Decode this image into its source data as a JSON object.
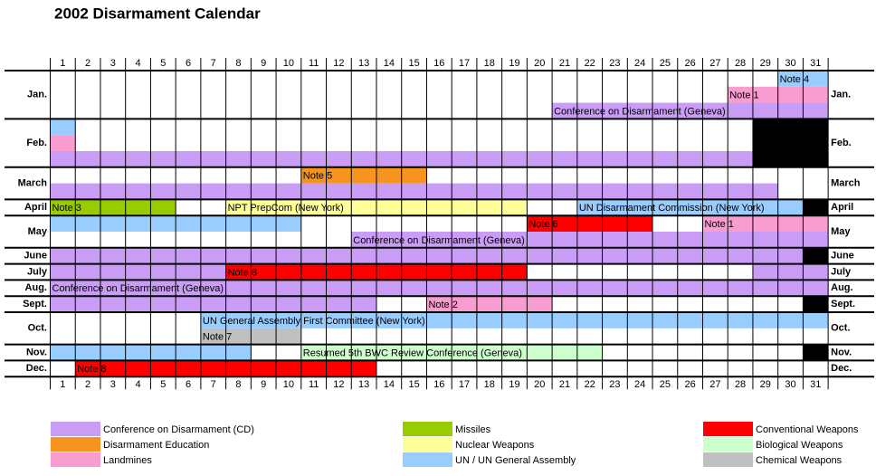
{
  "title": "2002 Disarmament Calendar",
  "days": [
    1,
    2,
    3,
    4,
    5,
    6,
    7,
    8,
    9,
    10,
    11,
    12,
    13,
    14,
    15,
    16,
    17,
    18,
    19,
    20,
    21,
    22,
    23,
    24,
    25,
    26,
    27,
    28,
    29,
    30,
    31
  ],
  "months": [
    {
      "label": "Jan.",
      "lanes": [
        [
          {
            "label": "Note 4",
            "start": 30,
            "end": 31,
            "color": "#99ccff"
          }
        ],
        [
          {
            "label": "Note 1",
            "start": 28,
            "end": 31,
            "color": "#f99ccf"
          }
        ],
        [
          {
            "label": "Conference on Disarmament (Geneva)",
            "start": 21,
            "end": 31,
            "color": "#c99cf5"
          }
        ]
      ]
    },
    {
      "label": "Feb.",
      "lanes": [
        [
          {
            "start": 1,
            "end": 1,
            "color": "#99ccff"
          }
        ],
        [
          {
            "start": 1,
            "end": 1,
            "color": "#f99ccf"
          }
        ],
        [
          {
            "start": 1,
            "end": 28,
            "color": "#c99cf5"
          }
        ]
      ]
    },
    {
      "label": "March",
      "lanes": [
        [
          {
            "label": "Note 5",
            "start": 11,
            "end": 15,
            "color": "#f7941d"
          }
        ],
        [
          {
            "start": 1,
            "end": 29,
            "color": "#c99cf5"
          }
        ]
      ]
    },
    {
      "label": "April",
      "lanes": [
        [
          {
            "label": "Note 3",
            "start": 1,
            "end": 5,
            "color": "#99cc00"
          },
          {
            "label": "NPT PrepCom (New York)",
            "start": 8,
            "end": 19,
            "color": "#ffff99"
          },
          {
            "label": "UN Disarmament Commission (New York)",
            "start": 22,
            "end": 30,
            "color": "#99ccff"
          }
        ]
      ]
    },
    {
      "label": "May",
      "lanes": [
        [
          {
            "start": 1,
            "end": 10,
            "color": "#99ccff"
          },
          {
            "label": "Note 6",
            "start": 20,
            "end": 24,
            "color": "#ff0000"
          },
          {
            "label": "Note 1",
            "start": 27,
            "end": 31,
            "color": "#f99ccf"
          }
        ],
        [
          {
            "label": "Conference on Disarmament (Geneva)",
            "start": 13,
            "end": 31,
            "color": "#c99cf5"
          }
        ]
      ]
    },
    {
      "label": "June",
      "lanes": [
        [
          {
            "start": 1,
            "end": 30,
            "color": "#c99cf5"
          }
        ]
      ]
    },
    {
      "label": "July",
      "lanes": [
        [
          {
            "start": 1,
            "end": 7,
            "color": "#c99cf5"
          },
          {
            "label": "Note 8",
            "start": 8,
            "end": 19,
            "color": "#ff0000"
          },
          {
            "start": 29,
            "end": 31,
            "color": "#c99cf5"
          }
        ]
      ]
    },
    {
      "label": "Aug.",
      "lanes": [
        [
          {
            "label": "Conference on Disarmament (Geneva)",
            "start": 1,
            "end": 31,
            "color": "#c99cf5"
          }
        ]
      ]
    },
    {
      "label": "Sept.",
      "lanes": [
        [
          {
            "start": 1,
            "end": 13,
            "color": "#c99cf5"
          },
          {
            "label": "Note 2",
            "start": 16,
            "end": 20,
            "color": "#f99ccf"
          }
        ]
      ]
    },
    {
      "label": "Oct.",
      "lanes": [
        [
          {
            "label": "UN General Assembly First Committee (New York)",
            "start": 7,
            "end": 31,
            "color": "#99ccff"
          }
        ],
        [
          {
            "label": "Note 7",
            "start": 7,
            "end": 10,
            "color": "#c0c0c0"
          }
        ]
      ]
    },
    {
      "label": "Nov.",
      "lanes": [
        [
          {
            "start": 1,
            "end": 8,
            "color": "#99ccff"
          },
          {
            "label": "Resumed 5th BWC Review Conference (Geneva)",
            "start": 11,
            "end": 22,
            "color": "#ccffcc"
          }
        ]
      ]
    },
    {
      "label": "Dec.",
      "lanes": [
        [
          {
            "label": "Note 8",
            "start": 2,
            "end": 13,
            "color": "#ff0000"
          }
        ]
      ]
    }
  ],
  "legend": [
    {
      "label": "Conference on Disarmament (CD)",
      "color": "#c99cf5"
    },
    {
      "label": "Disarmament Education",
      "color": "#f7941d"
    },
    {
      "label": "Landmines",
      "color": "#f99ccf"
    },
    {
      "label": "Missiles",
      "color": "#99cc00"
    },
    {
      "label": "Nuclear Weapons",
      "color": "#ffff99"
    },
    {
      "label": "UN / UN General Assembly",
      "color": "#99ccff"
    },
    {
      "label": "Conventional Weapons",
      "color": "#ff0000"
    },
    {
      "label": "Biological Weapons",
      "color": "#ccffcc"
    },
    {
      "label": "Chemical Weapons",
      "color": "#c0c0c0"
    }
  ]
}
